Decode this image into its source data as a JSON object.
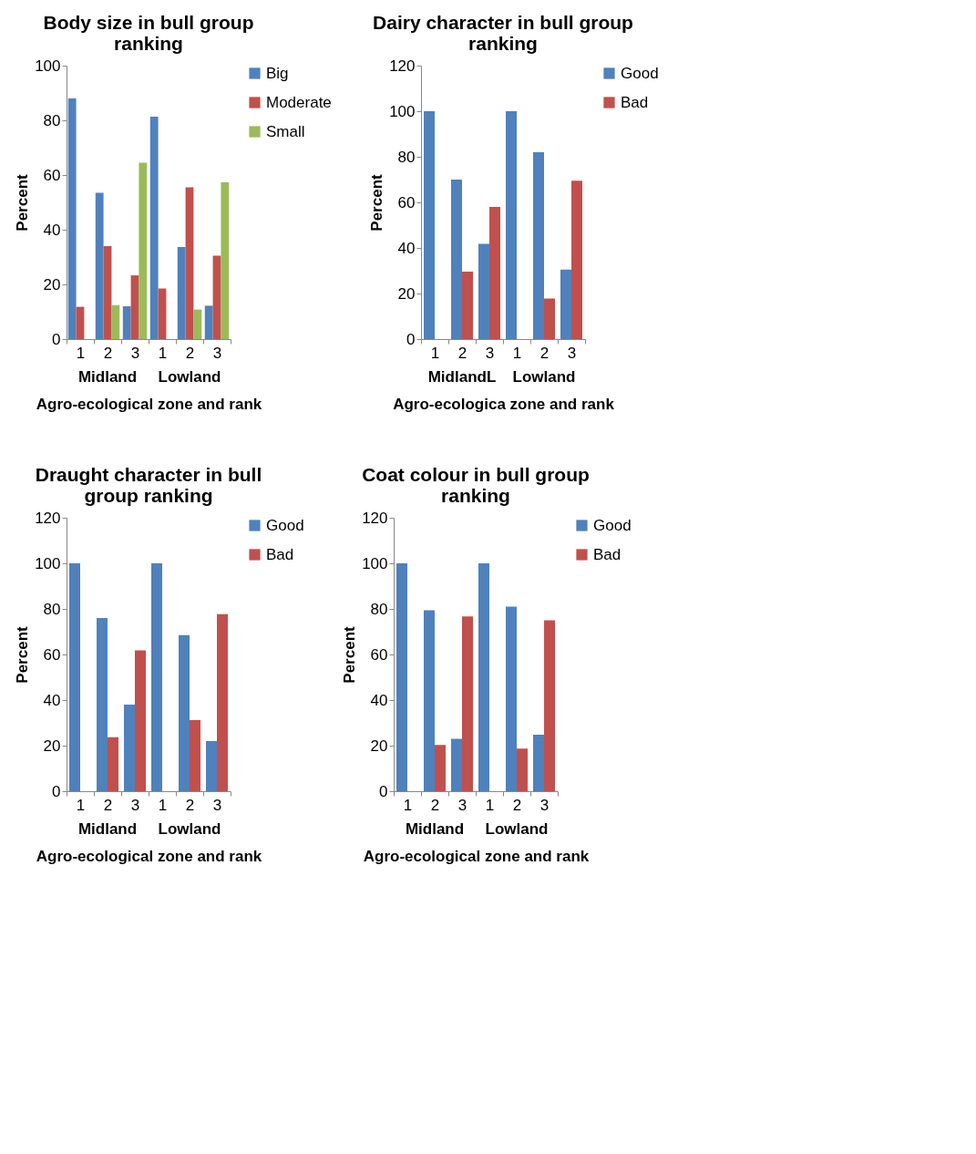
{
  "chart_data": [
    {
      "type": "bar",
      "title": "Body size in bull group ranking",
      "xlabel": "Agro-ecological zone and rank",
      "ylabel": "Percent",
      "categories": [
        "1",
        "2",
        "3",
        "1",
        "2",
        "3"
      ],
      "annotations": [
        "Midland",
        "Lowland"
      ],
      "ylim": [
        0,
        100
      ],
      "yticks": [
        0,
        20,
        40,
        60,
        80,
        100
      ],
      "grid": false,
      "legend": "right",
      "series": [
        {
          "name": "Big",
          "color": "#4f81bd",
          "values": [
            88,
            53.5,
            12,
            81.3,
            33.7,
            12.2
          ]
        },
        {
          "name": "Moderate",
          "color": "#c0504d",
          "values": [
            11.8,
            34,
            23.3,
            18.5,
            55.5,
            30.5
          ]
        },
        {
          "name": "Small",
          "color": "#9bbb59",
          "values": [
            0,
            12.4,
            64.5,
            0,
            10.8,
            57.3
          ]
        }
      ]
    },
    {
      "type": "bar",
      "title": "Dairy character in bull group ranking",
      "xlabel": "Agro-ecologica zone and rank",
      "ylabel": "Percent",
      "categories": [
        "1",
        "2",
        "3",
        "1",
        "2",
        "3"
      ],
      "annotations": [
        "MidlandL",
        "Lowland"
      ],
      "ylim": [
        0,
        120
      ],
      "yticks": [
        0,
        20,
        40,
        60,
        80,
        100,
        120
      ],
      "grid": false,
      "legend": "right",
      "series": [
        {
          "name": "Good",
          "color": "#4f81bd",
          "values": [
            100,
            70,
            41.8,
            100,
            82,
            30.5
          ]
        },
        {
          "name": "Bad",
          "color": "#c0504d",
          "values": [
            0,
            29.6,
            58,
            0,
            17.8,
            69.5
          ]
        }
      ]
    },
    {
      "type": "bar",
      "title": "Draught character in bull group ranking",
      "xlabel": "Agro-ecological zone and rank",
      "ylabel": "Percent",
      "categories": [
        "1",
        "2",
        "3",
        "1",
        "2",
        "3"
      ],
      "annotations": [
        "Midland",
        "Lowland"
      ],
      "ylim": [
        0,
        120
      ],
      "yticks": [
        0,
        20,
        40,
        60,
        80,
        100,
        120
      ],
      "grid": false,
      "legend": "right",
      "series": [
        {
          "name": "Good",
          "color": "#4f81bd",
          "values": [
            100,
            76,
            38,
            100,
            68.5,
            22
          ]
        },
        {
          "name": "Bad",
          "color": "#c0504d",
          "values": [
            0,
            23.7,
            61.8,
            0,
            31.2,
            77.7
          ]
        }
      ]
    },
    {
      "type": "bar",
      "title": "Coat colour in bull group ranking",
      "xlabel": "Agro-ecological zone and rank",
      "ylabel": "Percent",
      "categories": [
        "1",
        "2",
        "3",
        "1",
        "2",
        "3"
      ],
      "annotations": [
        "Midland",
        "Lowland"
      ],
      "ylim": [
        0,
        120
      ],
      "yticks": [
        0,
        20,
        40,
        60,
        80,
        100,
        120
      ],
      "grid": false,
      "legend": "right",
      "series": [
        {
          "name": "Good",
          "color": "#4f81bd",
          "values": [
            100,
            79.4,
            23,
            100,
            81,
            24.8
          ]
        },
        {
          "name": "Bad",
          "color": "#c0504d",
          "values": [
            0,
            20.3,
            76.7,
            0,
            18.7,
            75
          ]
        }
      ]
    }
  ]
}
